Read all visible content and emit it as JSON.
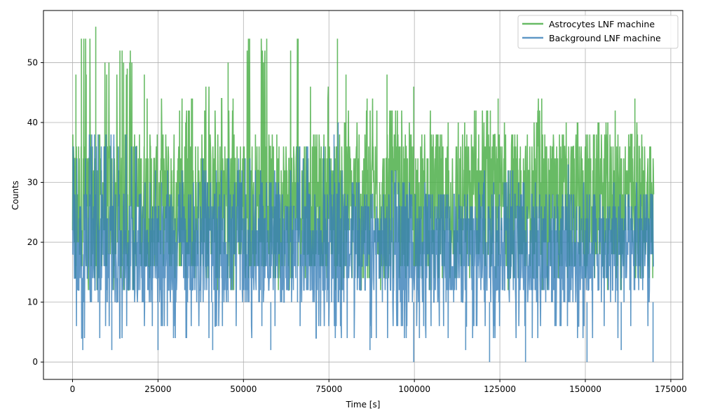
{
  "chart_data": {
    "type": "line",
    "title": "",
    "xlabel": "Time [s]",
    "ylabel": "Counts",
    "xlim": [
      -8500,
      178500
    ],
    "ylim": [
      -2.9,
      58.7
    ],
    "xticks": [
      0,
      25000,
      50000,
      75000,
      100000,
      125000,
      150000,
      175000
    ],
    "xtick_labels": [
      "0",
      "25000",
      "50000",
      "75000",
      "100000",
      "125000",
      "150000",
      "175000"
    ],
    "yticks": [
      0,
      10,
      20,
      30,
      40,
      50
    ],
    "ytick_labels": [
      "0",
      "10",
      "20",
      "30",
      "40",
      "50"
    ],
    "grid": true,
    "legend_position": "top-right",
    "x_range": [
      0,
      170000
    ],
    "series": [
      {
        "name": "Astrocytes LNF machine",
        "color": "#4daf4a",
        "alpha": 0.85,
        "typical_band": [
          16,
          38
        ],
        "min_envelope": [
          12,
          12,
          14,
          14,
          12,
          14,
          12,
          14,
          12,
          12,
          14,
          12,
          14,
          12,
          12,
          14,
          12,
          12
        ],
        "max_envelope": [
          56,
          52,
          46,
          44,
          46,
          54,
          54,
          48,
          42,
          44,
          42,
          44,
          44,
          40,
          44,
          42,
          42,
          40
        ],
        "peaks": [
          {
            "x": 1000,
            "y": 48
          },
          {
            "x": 2600,
            "y": 54
          },
          {
            "x": 4000,
            "y": 48
          },
          {
            "x": 6800,
            "y": 56
          },
          {
            "x": 10000,
            "y": 48
          },
          {
            "x": 14500,
            "y": 52
          },
          {
            "x": 16000,
            "y": 49
          },
          {
            "x": 21000,
            "y": 48
          },
          {
            "x": 45500,
            "y": 50
          },
          {
            "x": 51800,
            "y": 54
          },
          {
            "x": 66000,
            "y": 54
          },
          {
            "x": 77500,
            "y": 54
          },
          {
            "x": 80000,
            "y": 48
          },
          {
            "x": 92000,
            "y": 48
          },
          {
            "x": 99800,
            "y": 46
          },
          {
            "x": 124500,
            "y": 44
          },
          {
            "x": 164500,
            "y": 44
          }
        ]
      },
      {
        "name": "Background LNF machine",
        "color": "#377eb8",
        "alpha": 0.8,
        "typical_band": [
          10,
          28
        ],
        "min_envelope": [
          4,
          4,
          4,
          4,
          4,
          4,
          4,
          4,
          4,
          4,
          4,
          4,
          4,
          4,
          4,
          4,
          4,
          4
        ],
        "max_envelope": [
          38,
          38,
          32,
          32,
          34,
          34,
          32,
          36,
          32,
          34,
          30,
          30,
          30,
          32,
          30,
          30,
          30,
          30
        ],
        "peaks": [
          {
            "x": 7500,
            "y": 38
          },
          {
            "x": 9800,
            "y": 38
          },
          {
            "x": 5400,
            "y": 36
          },
          {
            "x": 76500,
            "y": 38
          },
          {
            "x": 45500,
            "y": 34
          },
          {
            "x": 50500,
            "y": 34
          },
          {
            "x": 65800,
            "y": 36
          },
          {
            "x": 77700,
            "y": 40
          },
          {
            "x": 120500,
            "y": 32
          },
          {
            "x": 145000,
            "y": 33
          }
        ],
        "dips": [
          {
            "x": 99800,
            "y": 0
          },
          {
            "x": 122000,
            "y": 0
          },
          {
            "x": 132500,
            "y": 0
          },
          {
            "x": 150500,
            "y": 0
          },
          {
            "x": 169800,
            "y": 0
          },
          {
            "x": 3000,
            "y": 2
          },
          {
            "x": 11500,
            "y": 2
          },
          {
            "x": 25000,
            "y": 2
          },
          {
            "x": 41000,
            "y": 2
          },
          {
            "x": 58000,
            "y": 2
          },
          {
            "x": 87000,
            "y": 2
          },
          {
            "x": 115000,
            "y": 2
          },
          {
            "x": 160500,
            "y": 2
          }
        ]
      }
    ]
  }
}
